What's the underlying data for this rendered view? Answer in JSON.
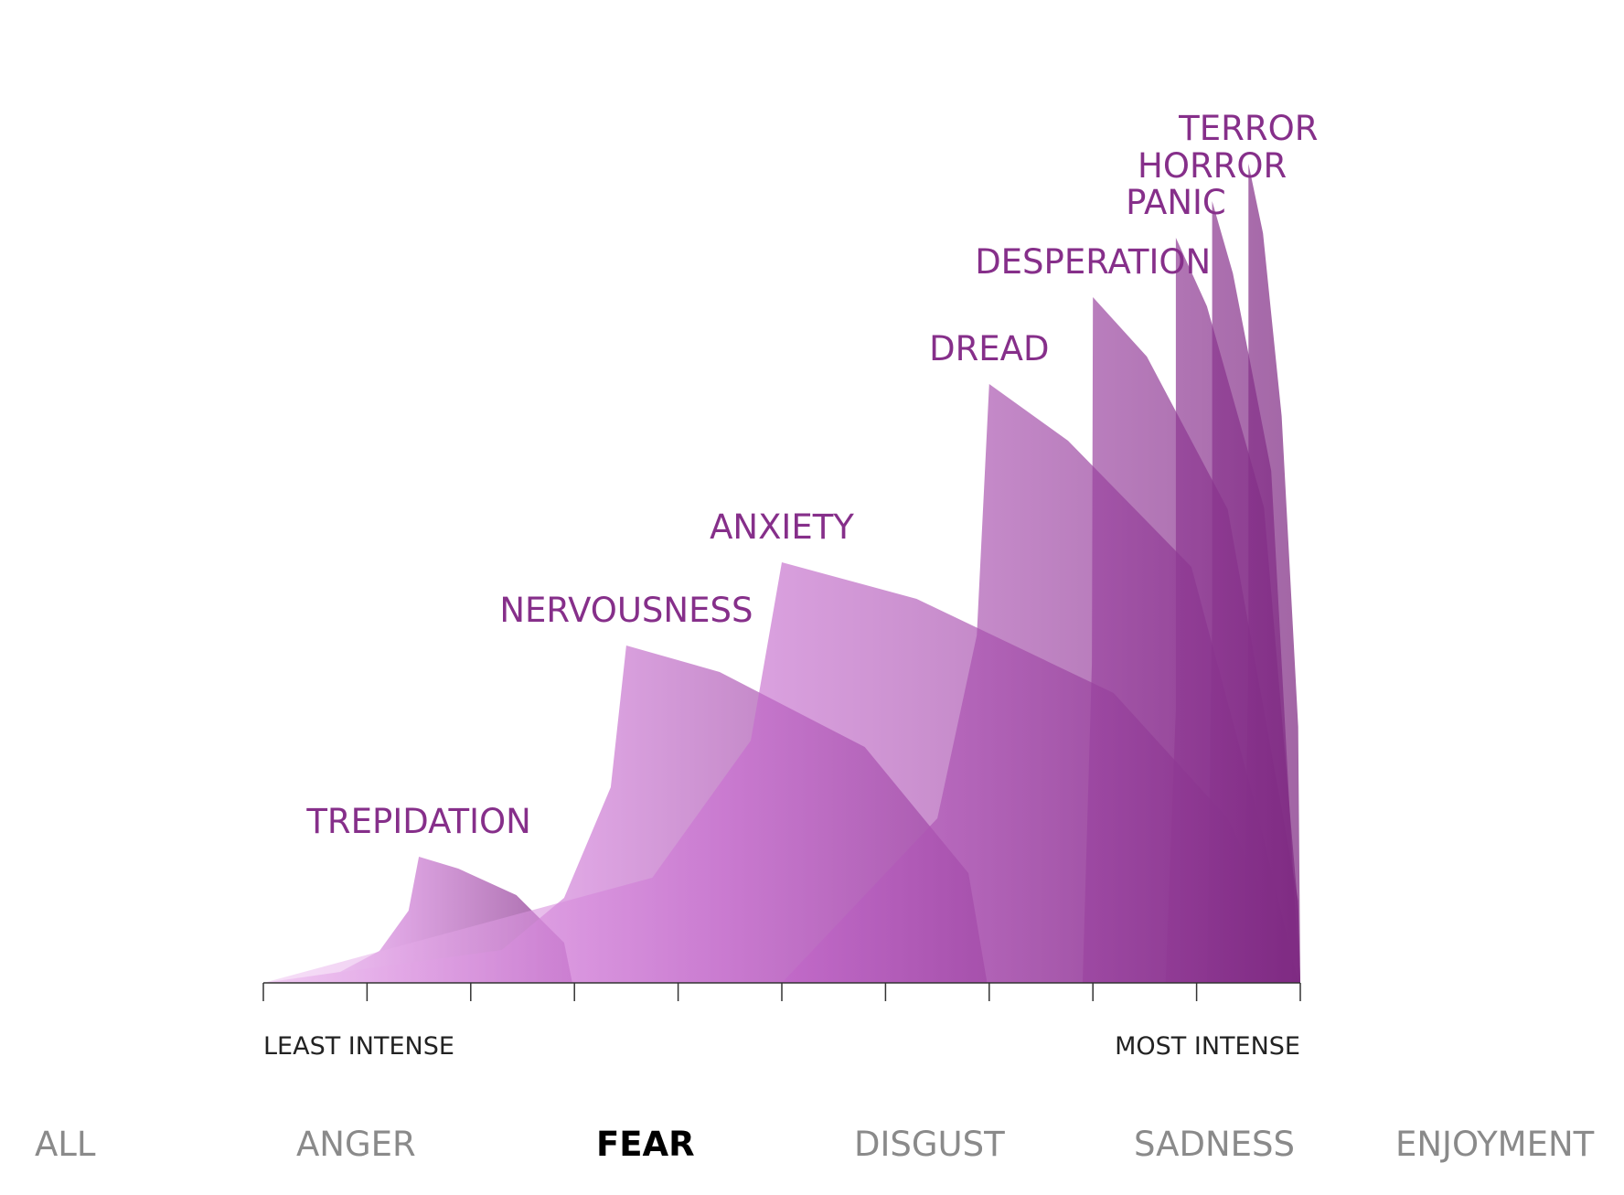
{
  "chart_data": {
    "type": "area",
    "emotion": "FEAR",
    "x_axis": {
      "min_label": "LEAST INTENSE",
      "max_label": "MOST INTENSE",
      "range": [
        0,
        10
      ],
      "ticks": [
        0,
        1,
        2,
        3,
        4,
        5,
        6,
        7,
        8,
        9,
        10
      ]
    },
    "y_range": [
      0,
      10
    ],
    "accent_color": "#862f8a",
    "fill_light": "#f0c6f2",
    "fill_mid": "#c86cd0",
    "fill_dark": "#7e2a82",
    "series": [
      {
        "name": "TREPIDATION",
        "points": [
          [
            0,
            0
          ],
          [
            0.74,
            0.12
          ],
          [
            1.12,
            0.35
          ],
          [
            1.4,
            0.79
          ],
          [
            1.5,
            1.38
          ],
          [
            1.88,
            1.25
          ],
          [
            2.44,
            0.96
          ],
          [
            2.9,
            0.44
          ],
          [
            2.98,
            0
          ]
        ]
      },
      {
        "name": "NERVOUSNESS",
        "points": [
          [
            0,
            0
          ],
          [
            2.3,
            0.36
          ],
          [
            2.9,
            0.93
          ],
          [
            3.35,
            2.14
          ],
          [
            3.5,
            3.69
          ],
          [
            4.4,
            3.4
          ],
          [
            5.8,
            2.58
          ],
          [
            6.8,
            1.2
          ],
          [
            6.98,
            0
          ]
        ]
      },
      {
        "name": "ANXIETY",
        "points": [
          [
            0,
            0
          ],
          [
            3.75,
            1.15
          ],
          [
            4.7,
            2.65
          ],
          [
            5.0,
            4.6
          ],
          [
            6.3,
            4.2
          ],
          [
            8.2,
            3.17
          ],
          [
            9.3,
            1.8
          ],
          [
            9.8,
            0.6
          ],
          [
            9.98,
            0
          ]
        ]
      },
      {
        "name": "DREAD",
        "points": [
          [
            0,
            0
          ],
          [
            5.0,
            0
          ],
          [
            6.5,
            1.8
          ],
          [
            6.88,
            3.8
          ],
          [
            7.0,
            6.55
          ],
          [
            7.76,
            5.93
          ],
          [
            8.95,
            4.55
          ],
          [
            9.6,
            1.8
          ],
          [
            9.98,
            0
          ]
        ]
      },
      {
        "name": "DESPERATION",
        "points": [
          [
            0,
            0
          ],
          [
            7.9,
            0
          ],
          [
            7.99,
            3.5
          ],
          [
            8.0,
            7.5
          ],
          [
            8.52,
            6.85
          ],
          [
            9.3,
            5.18
          ],
          [
            9.98,
            0.9
          ],
          [
            10,
            0
          ]
        ]
      },
      {
        "name": "PANIC",
        "points": [
          [
            0,
            0
          ],
          [
            8.7,
            0
          ],
          [
            8.8,
            3.0
          ],
          [
            8.8,
            8.15
          ],
          [
            9.1,
            7.4
          ],
          [
            9.65,
            5.2
          ],
          [
            9.98,
            0.8
          ],
          [
            10,
            0
          ]
        ]
      },
      {
        "name": "HORROR",
        "points": [
          [
            0,
            0
          ],
          [
            9.1,
            0
          ],
          [
            9.15,
            4.0
          ],
          [
            9.15,
            8.55
          ],
          [
            9.35,
            7.76
          ],
          [
            9.72,
            5.6
          ],
          [
            9.95,
            0.8
          ],
          [
            10,
            0
          ]
        ]
      },
      {
        "name": "TERROR",
        "points": [
          [
            0,
            0
          ],
          [
            9.45,
            0
          ],
          [
            9.5,
            3.5
          ],
          [
            9.5,
            8.96
          ],
          [
            9.64,
            8.2
          ],
          [
            9.82,
            6.2
          ],
          [
            9.98,
            2.8
          ],
          [
            10,
            0
          ]
        ]
      }
    ]
  },
  "tabs": {
    "all": "ALL",
    "anger": "ANGER",
    "fear": "FEAR",
    "disgust": "DISGUST",
    "sadness": "SADNESS",
    "enjoyment": "ENJOYMENT",
    "active": "fear"
  }
}
